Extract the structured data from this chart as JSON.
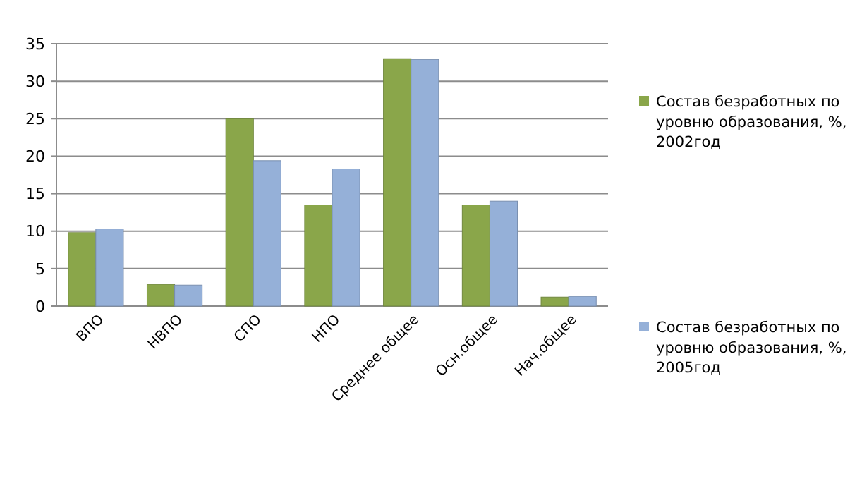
{
  "chart_data": {
    "type": "bar",
    "categories": [
      "ВПО",
      "НВПО",
      "СПО",
      "НПО",
      "Среднее  общее",
      "Осн.общее",
      "Нач.общее"
    ],
    "series": [
      {
        "name": "Состав безработных по уровню образования, %, 2002год",
        "color": "#8aa64a",
        "values": [
          9.8,
          2.9,
          25.0,
          13.5,
          33.0,
          13.5,
          1.2
        ]
      },
      {
        "name": "Состав безработных по уровню образования, %, 2005год",
        "color": "#95b0d8",
        "values": [
          10.3,
          2.8,
          19.4,
          18.3,
          32.9,
          14.0,
          1.3
        ]
      }
    ],
    "ylim": [
      0,
      35
    ],
    "yticks": [
      0,
      5,
      10,
      15,
      20,
      25,
      30,
      35
    ],
    "grid": "y",
    "legend": "right"
  }
}
